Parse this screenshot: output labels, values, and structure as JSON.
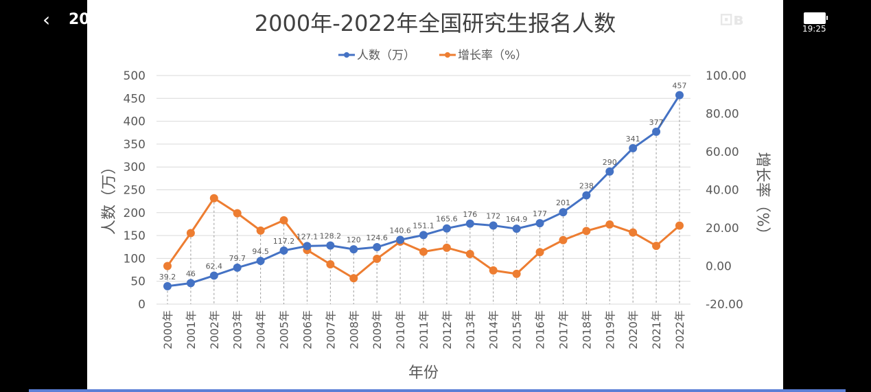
{
  "player": {
    "back_text": "20",
    "time": "19:25",
    "logo": "bilibili"
  },
  "colors": {
    "count": "#4472C4",
    "rate": "#ED7D31",
    "grid": "#d9d9d9",
    "text": "#595959"
  },
  "chart_data": {
    "type": "line",
    "title": "2000年-2022年全国研究生报名人数",
    "xlabel": "年份",
    "ylabel": "人数（万）",
    "y2label": "增长率（%）",
    "ylim": [
      0,
      500
    ],
    "y2lim": [
      -20,
      100
    ],
    "yticks": [
      "0",
      "50",
      "100",
      "150",
      "200",
      "250",
      "300",
      "350",
      "400",
      "450",
      "500"
    ],
    "y2ticks": [
      "-20.00",
      "0.00",
      "20.00",
      "40.00",
      "60.00",
      "80.00",
      "100.00"
    ],
    "legend_position": "top",
    "grid": true,
    "categories": [
      "2000年",
      "2001年",
      "2002年",
      "2003年",
      "2004年",
      "2005年",
      "2006年",
      "2007年",
      "2008年",
      "2009年",
      "2010年",
      "2011年",
      "2012年",
      "2013年",
      "2014年",
      "2015年",
      "2016年",
      "2017年",
      "2018年",
      "2019年",
      "2020年",
      "2021年",
      "2022年"
    ],
    "series": [
      {
        "name": "人数（万）",
        "axis": "left",
        "values": [
          39.2,
          46,
          62.4,
          79.7,
          94.5,
          117.2,
          127.1,
          128.2,
          120,
          124.6,
          140.6,
          151.1,
          165.6,
          176,
          172,
          164.9,
          177,
          201,
          238,
          290,
          341,
          377,
          457
        ],
        "labels": [
          "39.2",
          "46",
          "62.4",
          "79.7",
          "94.5",
          "117.2",
          "127.1",
          "128.2",
          "120",
          "124.6",
          "140.6",
          "151.1",
          "165.6",
          "176",
          "172",
          "164.9",
          "177",
          "201",
          "238",
          "290",
          "341",
          "377",
          "457"
        ]
      },
      {
        "name": "增长率（%）",
        "axis": "right",
        "values": [
          0,
          17.3,
          35.6,
          27.7,
          18.6,
          24.0,
          8.4,
          0.9,
          -6.4,
          3.8,
          12.8,
          7.5,
          9.6,
          6.3,
          -2.3,
          -4.1,
          7.3,
          13.6,
          18.4,
          21.8,
          17.6,
          10.6,
          21.2
        ]
      }
    ]
  }
}
